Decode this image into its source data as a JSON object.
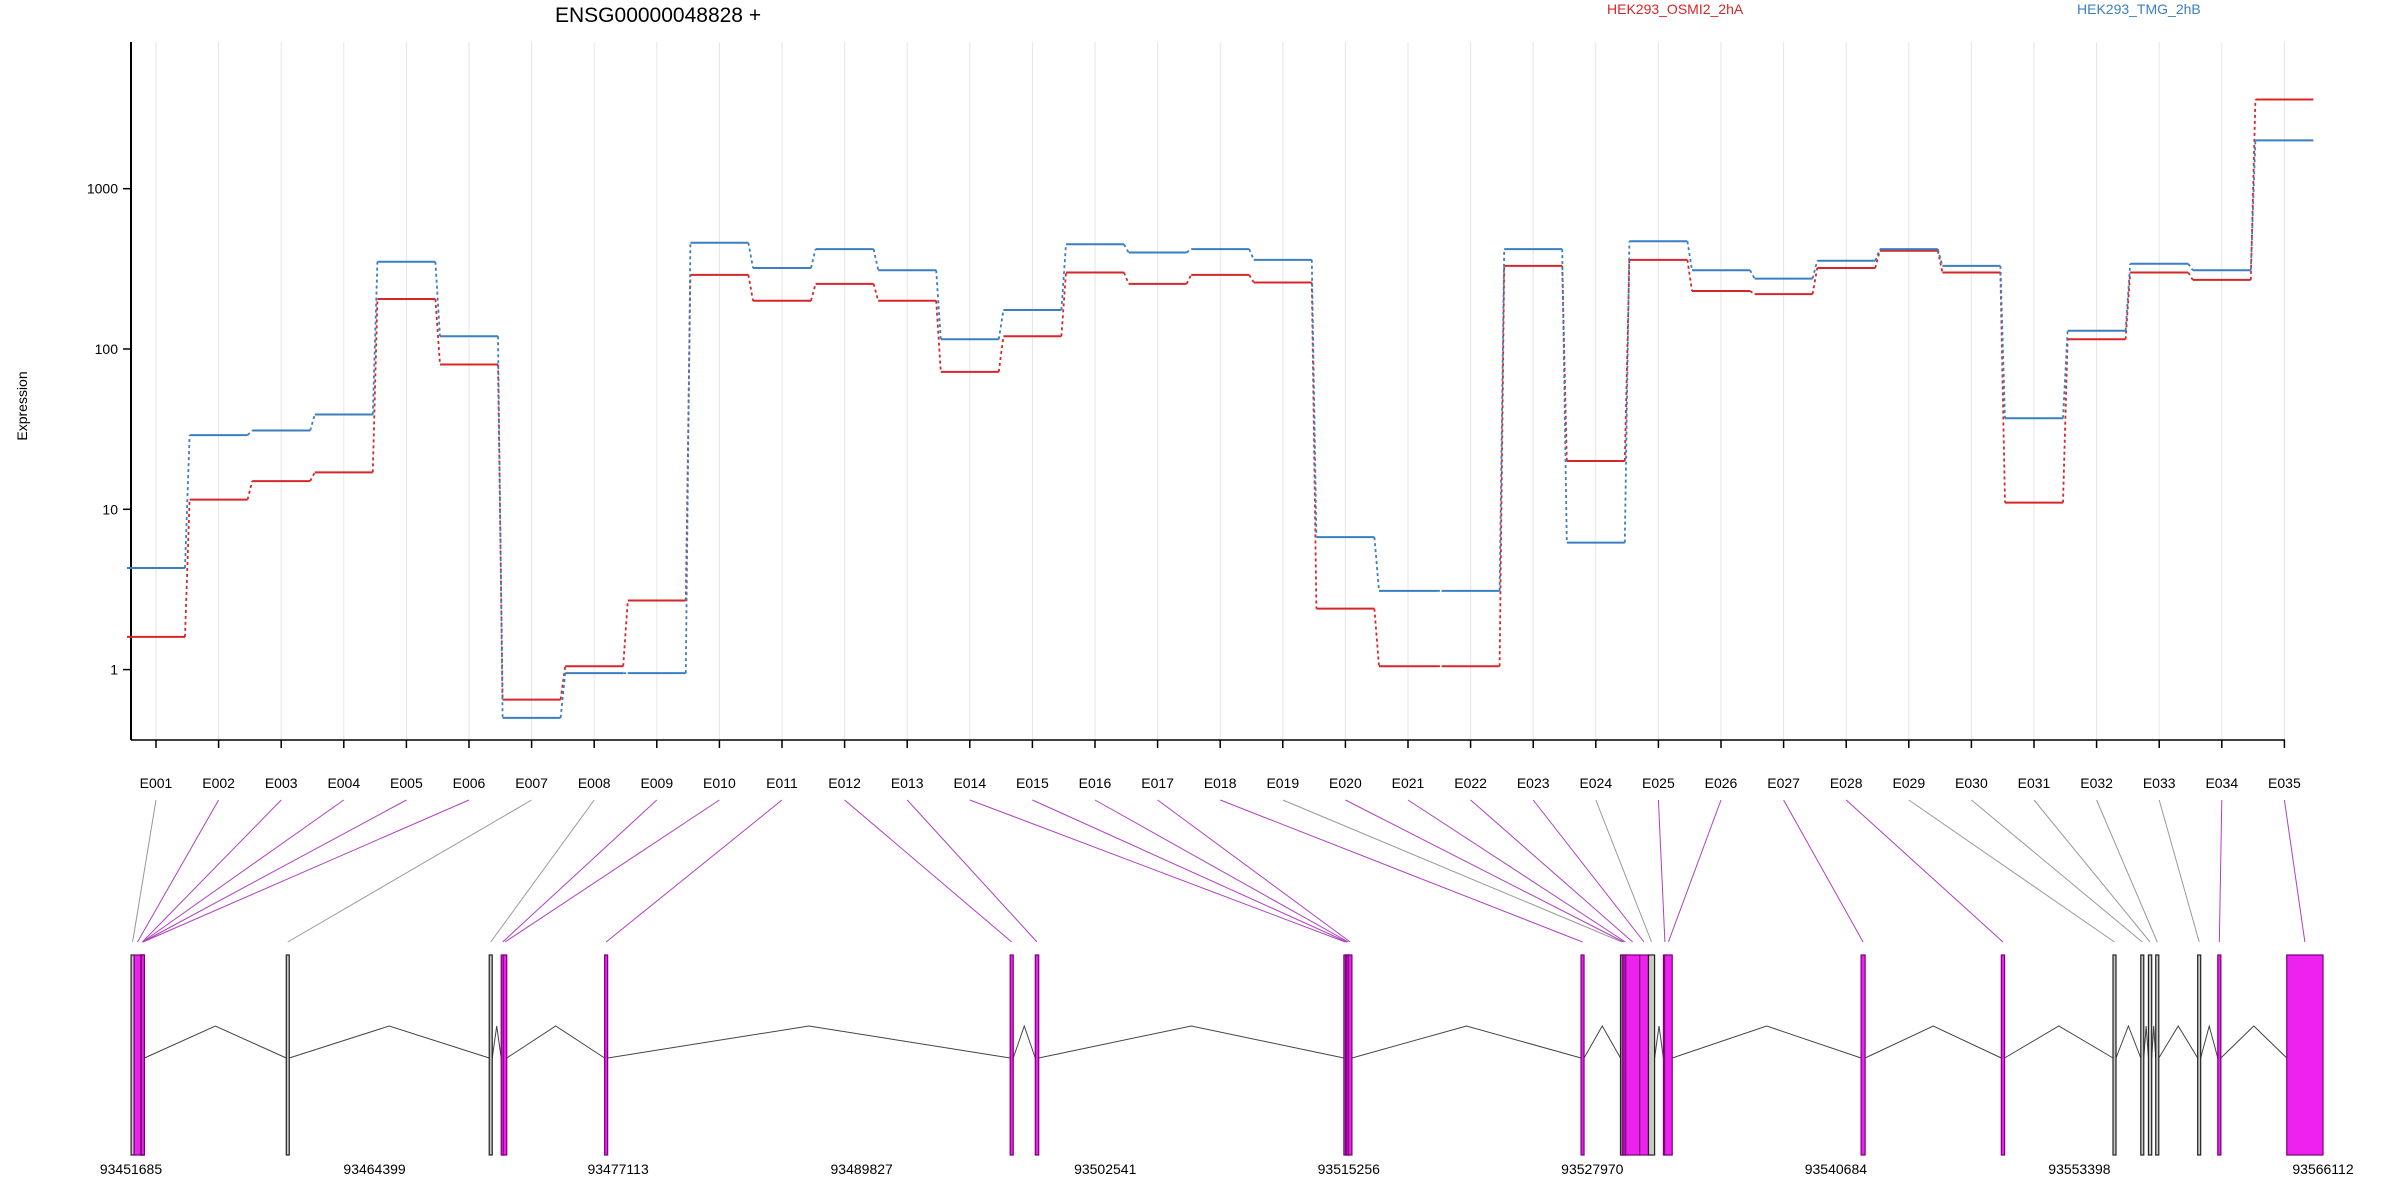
{
  "header": {
    "gene_title": "ENSG00000048828 +"
  },
  "chart_data": {
    "type": "line",
    "ylabel": "Expression",
    "y_scale": "log",
    "ylim": [
      0.42,
      5500
    ],
    "y_ticks": [
      {
        "value": 1,
        "label": "1"
      },
      {
        "value": 10,
        "label": "10"
      },
      {
        "value": 100,
        "label": "100"
      },
      {
        "value": 1000,
        "label": "1000"
      }
    ],
    "grid": "vertical",
    "categories": [
      "E001",
      "E002",
      "E003",
      "E004",
      "E005",
      "E006",
      "E007",
      "E008",
      "E009",
      "E010",
      "E011",
      "E012",
      "E013",
      "E014",
      "E015",
      "E016",
      "E017",
      "E018",
      "E019",
      "E020",
      "E021",
      "E022",
      "E023",
      "E024",
      "E025",
      "E026",
      "E027",
      "E028",
      "E029",
      "E030",
      "E031",
      "E032",
      "E033",
      "E034",
      "E035"
    ],
    "series": [
      {
        "name": "HEK293_OSMI2_2hA",
        "color": "#d62728",
        "values": [
          1.6,
          11.5,
          15,
          17,
          205,
          80,
          0.65,
          1.05,
          2.7,
          290,
          200,
          255,
          200,
          72,
          120,
          300,
          255,
          290,
          260,
          2.4,
          1.05,
          1.05,
          330,
          20,
          360,
          230,
          220,
          320,
          410,
          300,
          11,
          115,
          300,
          270,
          3600
        ]
      },
      {
        "name": "HEK293_TMG_2hB",
        "color": "#3a7fc0",
        "values": [
          4.3,
          29,
          31,
          39,
          350,
          120,
          0.5,
          0.95,
          0.95,
          460,
          320,
          420,
          310,
          115,
          175,
          450,
          400,
          420,
          360,
          6.7,
          3.1,
          3.1,
          420,
          6.2,
          470,
          310,
          275,
          355,
          420,
          330,
          37,
          130,
          340,
          310,
          2000
        ]
      }
    ],
    "gene_model": {
      "coordinate_labels": [
        "93451685",
        "93464399",
        "93477113",
        "93489827",
        "93502541",
        "93515256",
        "93527970",
        "93540684",
        "93553398",
        "93566112"
      ],
      "start": 93451685,
      "end": 93566112,
      "exon_color_highlight": "#ee22ee",
      "exon_color_normal": "#c8c8c8",
      "exons": [
        {
          "bin": "E001",
          "start": 93451690,
          "end": 93451840,
          "kind": "normal"
        },
        {
          "bin": "E002",
          "start": 93451850,
          "end": 93452200,
          "kind": "highlight"
        },
        {
          "bin": "E003",
          "start": 93452200,
          "end": 93452210,
          "kind": "highlight"
        },
        {
          "bin": "E004",
          "start": 93452210,
          "end": 93452220,
          "kind": "highlight"
        },
        {
          "bin": "E005",
          "start": 93452220,
          "end": 93452230,
          "kind": "highlight"
        },
        {
          "bin": "E006",
          "start": 93452230,
          "end": 93452240,
          "kind": "highlight"
        },
        {
          "bin": "E007",
          "start": 93459790,
          "end": 93459940,
          "kind": "normal"
        },
        {
          "bin": "E008",
          "start": 93470385,
          "end": 93470540,
          "kind": "normal"
        },
        {
          "bin": "E009",
          "start": 93471010,
          "end": 93471120,
          "kind": "highlight"
        },
        {
          "bin": "E010",
          "start": 93471120,
          "end": 93471300,
          "kind": "highlight"
        },
        {
          "bin": "E011",
          "start": 93476410,
          "end": 93476560,
          "kind": "highlight"
        },
        {
          "bin": "E012",
          "start": 93497580,
          "end": 93497740,
          "kind": "highlight"
        },
        {
          "bin": "E013",
          "start": 93498890,
          "end": 93499070,
          "kind": "highlight"
        },
        {
          "bin": "E014",
          "start": 93515000,
          "end": 93515090,
          "kind": "highlight"
        },
        {
          "bin": "E015",
          "start": 93515090,
          "end": 93515150,
          "kind": "highlight"
        },
        {
          "bin": "E016",
          "start": 93515150,
          "end": 93515240,
          "kind": "highlight"
        },
        {
          "bin": "E017",
          "start": 93515240,
          "end": 93515420,
          "kind": "highlight"
        },
        {
          "bin": "E018",
          "start": 93527380,
          "end": 93527500,
          "kind": "highlight"
        },
        {
          "bin": "E019",
          "start": 93529440,
          "end": 93529530,
          "kind": "normal"
        },
        {
          "bin": "E020",
          "start": 93529530,
          "end": 93529620,
          "kind": "highlight"
        },
        {
          "bin": "E021",
          "start": 93529620,
          "end": 93529710,
          "kind": "highlight"
        },
        {
          "bin": "E022",
          "start": 93529710,
          "end": 93530440,
          "kind": "highlight"
        },
        {
          "bin": "E023",
          "start": 93530440,
          "end": 93530900,
          "kind": "highlight"
        },
        {
          "bin": "E024",
          "start": 93530900,
          "end": 93531220,
          "kind": "normal"
        },
        {
          "bin": "E025",
          "start": 93531680,
          "end": 93531740,
          "kind": "highlight"
        },
        {
          "bin": "E026",
          "start": 93531740,
          "end": 93532140,
          "kind": "highlight"
        },
        {
          "bin": "E027",
          "start": 93542000,
          "end": 93542210,
          "kind": "highlight"
        },
        {
          "bin": "E028",
          "start": 93549320,
          "end": 93549490,
          "kind": "highlight"
        },
        {
          "bin": "E029",
          "start": 93555150,
          "end": 93555240,
          "kind": "normal"
        },
        {
          "bin": "E030",
          "start": 93556600,
          "end": 93556750,
          "kind": "normal"
        },
        {
          "bin": "E031",
          "start": 93557000,
          "end": 93557170,
          "kind": "normal"
        },
        {
          "bin": "E032",
          "start": 93557380,
          "end": 93557540,
          "kind": "normal"
        },
        {
          "bin": "E033",
          "start": 93559570,
          "end": 93559720,
          "kind": "normal"
        },
        {
          "bin": "E034",
          "start": 93560620,
          "end": 93560780,
          "kind": "highlight"
        },
        {
          "bin": "E035",
          "start": 93564220,
          "end": 93566112,
          "kind": "highlight"
        }
      ]
    }
  }
}
